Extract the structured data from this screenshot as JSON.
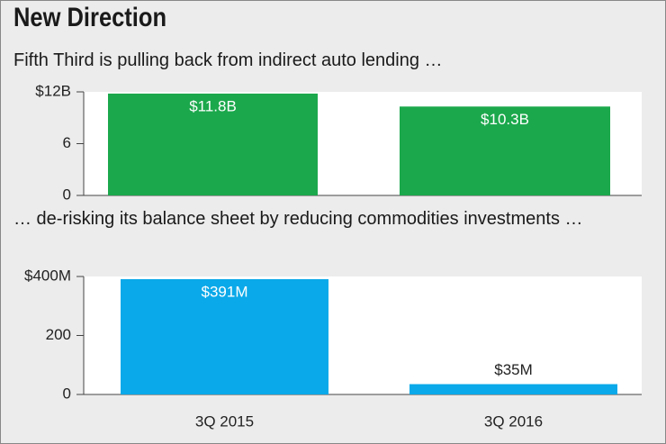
{
  "title": "New Direction",
  "chart_data": [
    {
      "type": "bar",
      "subtitle": "Fifth Third is pulling back from indirect auto lending …",
      "categories": [
        null,
        null
      ],
      "values": [
        11.8,
        10.3
      ],
      "value_labels": [
        "$11.8B",
        "$10.3B"
      ],
      "color": "#1ba84c",
      "ylim": [
        0,
        12
      ],
      "yticks": [
        0,
        6,
        {
          "value": 12,
          "label": "$12B"
        }
      ]
    },
    {
      "type": "bar",
      "subtitle": "… de-risking its balance sheet by reducing commodities investments …",
      "categories": [
        "3Q 2015",
        "3Q 2016"
      ],
      "values": [
        391,
        35
      ],
      "value_labels": [
        "$391M",
        "$35M"
      ],
      "color": "#0aa9e9",
      "ylim": [
        0,
        400
      ],
      "yticks": [
        0,
        200,
        {
          "value": 400,
          "label": "$400M"
        }
      ]
    }
  ]
}
